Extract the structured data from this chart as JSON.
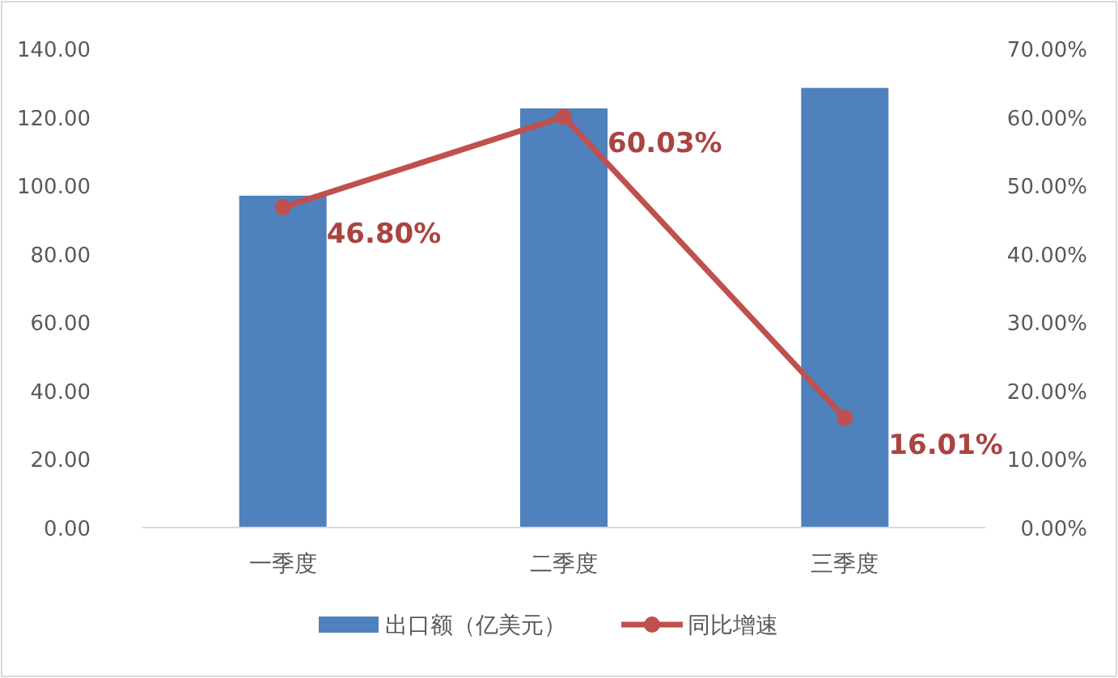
{
  "chart_data": {
    "type": "bar",
    "categories": [
      "一季度",
      "二季度",
      "三季度"
    ],
    "series": [
      {
        "name": "出口额（亿美元）",
        "color": "#4f81bd",
        "values": [
          97,
          122.5,
          128.5
        ]
      },
      {
        "name": "同比增速",
        "type": "line",
        "axis": "y2",
        "color": "#c0504d",
        "marker": "circle",
        "values": [
          46.8,
          60.03,
          16.01
        ],
        "value_labels": [
          "46.80%",
          "60.03%",
          "16.01%"
        ]
      }
    ],
    "ylim": [
      0,
      140
    ],
    "yticks": [
      {
        "value": 0,
        "label": "0.00"
      },
      {
        "value": 20,
        "label": "20.00"
      },
      {
        "value": 40,
        "label": "40.00"
      },
      {
        "value": 60,
        "label": "60.00"
      },
      {
        "value": 80,
        "label": "80.00"
      },
      {
        "value": 100,
        "label": "100.00"
      },
      {
        "value": 120,
        "label": "120.00"
      },
      {
        "value": 140,
        "label": "140.00"
      }
    ],
    "y2lim": [
      0,
      70
    ],
    "y2ticks": [
      {
        "value": 0,
        "label": "0.00%"
      },
      {
        "value": 10,
        "label": "10.00%"
      },
      {
        "value": 20,
        "label": "20.00%"
      },
      {
        "value": 30,
        "label": "30.00%"
      },
      {
        "value": 40,
        "label": "40.00%"
      },
      {
        "value": 50,
        "label": "50.00%"
      },
      {
        "value": 60,
        "label": "60.00%"
      },
      {
        "value": 70,
        "label": "70.00%"
      }
    ],
    "legend": "bottom"
  }
}
